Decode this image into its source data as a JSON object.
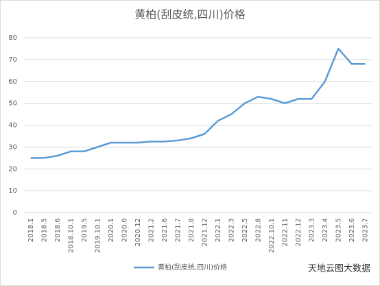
{
  "chart_data": {
    "type": "line",
    "title": "黄柏(刮皮统,四川)价格",
    "categories": [
      "2018.1",
      "2018.5",
      "2018.6",
      "2018.10.1",
      "2019.5",
      "2019.10.1",
      "2020.1",
      "2020.6",
      "2020.12",
      "2021.2",
      "2021.6",
      "2021.7",
      "2021.8",
      "2021.12",
      "2022.1",
      "2022.3",
      "2022.5",
      "2022.8",
      "2022.10.1",
      "2022.11",
      "2022.12",
      "2023.3",
      "2023.4",
      "2023.5",
      "2023.6",
      "2023.7"
    ],
    "series": [
      {
        "name": "黄柏(刮皮统,四川)价格",
        "color": "#5b9bd5",
        "values": [
          25,
          25,
          26,
          28,
          28,
          30,
          32,
          32,
          32,
          32.5,
          32.5,
          33,
          34,
          36,
          42,
          45,
          50,
          53,
          52,
          50,
          52,
          52,
          60,
          75,
          68,
          68
        ]
      }
    ],
    "ylim": [
      0,
      80
    ],
    "yticks": [
      0,
      10,
      20,
      30,
      40,
      50,
      60,
      70,
      80
    ],
    "grid": true,
    "legend": "bottom",
    "watermark": "天地云图大数据"
  }
}
